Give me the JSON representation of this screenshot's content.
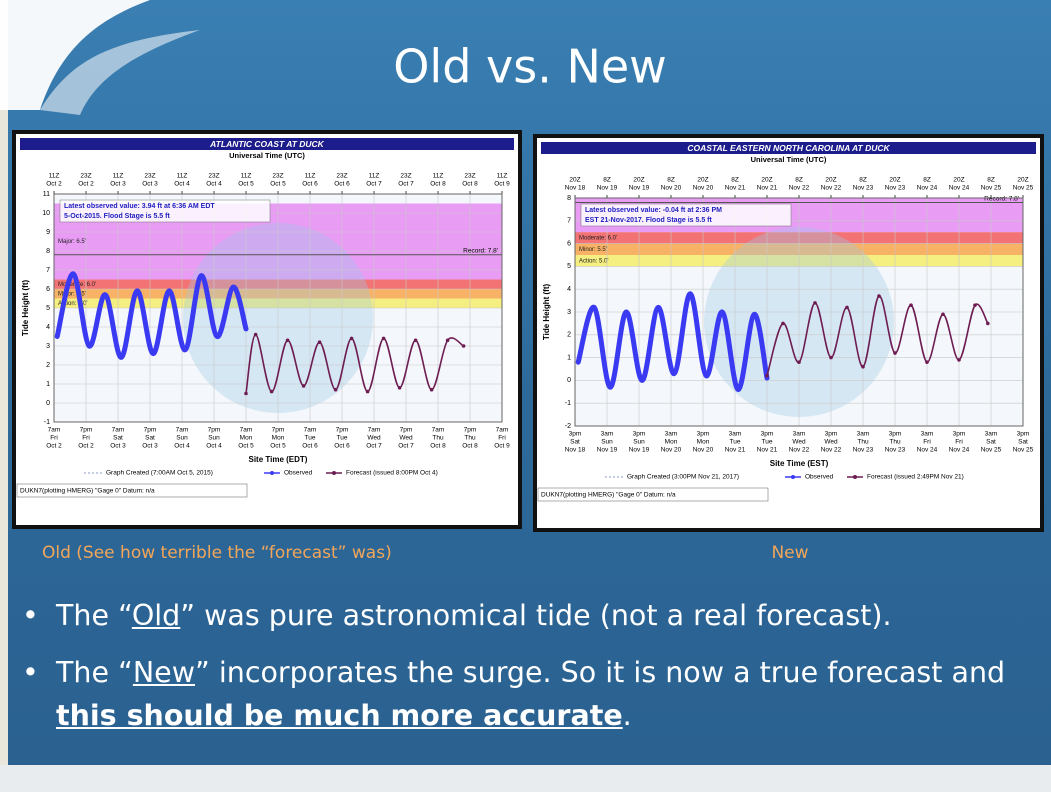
{
  "slide": {
    "title": "Old vs. New"
  },
  "panels": [
    {
      "caption": "Old (See how terrible the “forecast” was)",
      "chart": {
        "type": "line",
        "title": "ATLANTIC COAST AT DUCK",
        "top_axis_label": "Universal Time (UTC)",
        "xlabel": "Site Time (EDT)",
        "ylabel": "Tide Height (ft)",
        "xlim": [
          0,
          7
        ],
        "ylim": [
          -1,
          11
        ],
        "yticks": [
          -1,
          0,
          1,
          2,
          3,
          4,
          5,
          6,
          7,
          8,
          9,
          10,
          11
        ],
        "grid": true,
        "top_ticks": [
          {
            "value": 0,
            "hour": "11Z",
            "date": "Oct 2"
          },
          {
            "value": 0.5,
            "hour": "23Z",
            "date": "Oct 2"
          },
          {
            "value": 1,
            "hour": "11Z",
            "date": "Oct 3"
          },
          {
            "value": 1.5,
            "hour": "23Z",
            "date": "Oct 3"
          },
          {
            "value": 2,
            "hour": "11Z",
            "date": "Oct 4"
          },
          {
            "value": 2.5,
            "hour": "23Z",
            "date": "Oct 4"
          },
          {
            "value": 3,
            "hour": "11Z",
            "date": "Oct 5"
          },
          {
            "value": 3.5,
            "hour": "23Z",
            "date": "Oct 5"
          },
          {
            "value": 4,
            "hour": "11Z",
            "date": "Oct 6"
          },
          {
            "value": 4.5,
            "hour": "23Z",
            "date": "Oct 6"
          },
          {
            "value": 5,
            "hour": "11Z",
            "date": "Oct 7"
          },
          {
            "value": 5.5,
            "hour": "23Z",
            "date": "Oct 7"
          },
          {
            "value": 6,
            "hour": "11Z",
            "date": "Oct 8"
          },
          {
            "value": 6.5,
            "hour": "23Z",
            "date": "Oct 8"
          },
          {
            "value": 7,
            "hour": "11Z",
            "date": "Oct 9"
          }
        ],
        "xticks": [
          {
            "value": 0,
            "time": "7am",
            "day": "Fri",
            "date": "Oct 2"
          },
          {
            "value": 0.5,
            "time": "7pm",
            "day": "Fri",
            "date": "Oct 2"
          },
          {
            "value": 1,
            "time": "7am",
            "day": "Sat",
            "date": "Oct 3"
          },
          {
            "value": 1.5,
            "time": "7pm",
            "day": "Sat",
            "date": "Oct 3"
          },
          {
            "value": 2,
            "time": "7am",
            "day": "Sun",
            "date": "Oct 4"
          },
          {
            "value": 2.5,
            "time": "7pm",
            "day": "Sun",
            "date": "Oct 4"
          },
          {
            "value": 3,
            "time": "7am",
            "day": "Mon",
            "date": "Oct 5"
          },
          {
            "value": 3.5,
            "time": "7pm",
            "day": "Mon",
            "date": "Oct 5"
          },
          {
            "value": 4,
            "time": "7am",
            "day": "Tue",
            "date": "Oct 6"
          },
          {
            "value": 4.5,
            "time": "7pm",
            "day": "Tue",
            "date": "Oct 6"
          },
          {
            "value": 5,
            "time": "7am",
            "day": "Wed",
            "date": "Oct 7"
          },
          {
            "value": 5.5,
            "time": "7pm",
            "day": "Wed",
            "date": "Oct 7"
          },
          {
            "value": 6,
            "time": "7am",
            "day": "Thu",
            "date": "Oct 8"
          },
          {
            "value": 6.5,
            "time": "7pm",
            "day": "Thu",
            "date": "Oct 8"
          },
          {
            "value": 7,
            "time": "7am",
            "day": "Fri",
            "date": "Oct 9"
          }
        ],
        "bands": [
          {
            "from": 6.5,
            "to": 10.5,
            "color": "#e58cf2",
            "label": "Major: 6.5'"
          },
          {
            "from": 6.0,
            "to": 6.5,
            "color": "#f25c5c",
            "label": "Moderate: 6.0'"
          },
          {
            "from": 5.5,
            "to": 6.0,
            "color": "#f7a64a",
            "label": "Minor: 5.5'"
          },
          {
            "from": 5.0,
            "to": 5.5,
            "color": "#f4ec6a",
            "label": "Action: 5.0'"
          }
        ],
        "record": {
          "value": 7.8,
          "label": "Record: 7.8'"
        },
        "info": [
          "Latest observed value: 3.94 ft at 6:36 AM EDT",
          "5-Oct-2015.  Flood Stage is 5.5 ft"
        ],
        "created": "Graph Created (7:00AM Oct 5, 2015)",
        "footer": "DUKN7(plotting HMERG) \"Gage 0\" Datum: n/a",
        "series": [
          {
            "name": "Observed",
            "color": "#3a3af2",
            "x": [
              0.05,
              0.3,
              0.55,
              0.8,
              1.05,
              1.3,
              1.55,
              1.8,
              2.05,
              2.3,
              2.55,
              2.8,
              3.0
            ],
            "values": [
              3.5,
              6.8,
              3.0,
              5.7,
              2.4,
              5.9,
              2.6,
              5.9,
              2.8,
              6.7,
              3.5,
              6.1,
              3.9
            ]
          },
          {
            "name": "Forecast (issued 8:00PM Oct 4)",
            "color": "#6e1d52",
            "x": [
              3.0,
              3.15,
              3.4,
              3.65,
              3.9,
              4.15,
              4.4,
              4.65,
              4.9,
              5.15,
              5.4,
              5.65,
              5.9,
              6.15,
              6.4
            ],
            "values": [
              0.5,
              3.6,
              0.6,
              3.3,
              0.9,
              3.2,
              0.7,
              3.4,
              0.6,
              3.4,
              0.8,
              3.3,
              0.7,
              3.3,
              3.0
            ]
          }
        ]
      }
    },
    {
      "caption": "New",
      "chart": {
        "type": "line",
        "title": "COASTAL EASTERN NORTH CAROLINA AT DUCK",
        "top_axis_label": "Universal Time (UTC)",
        "xlabel": "Site Time (EST)",
        "ylabel": "Tide Height (ft)",
        "xlim": [
          0,
          7
        ],
        "ylim": [
          -2,
          8
        ],
        "yticks": [
          -2,
          -1,
          0,
          1,
          2,
          3,
          4,
          5,
          6,
          7,
          8
        ],
        "grid": true,
        "top_ticks": [
          {
            "value": 0,
            "hour": "20Z",
            "date": "Nov 18"
          },
          {
            "value": 0.5,
            "hour": "8Z",
            "date": "Nov 19"
          },
          {
            "value": 1,
            "hour": "20Z",
            "date": "Nov 19"
          },
          {
            "value": 1.5,
            "hour": "8Z",
            "date": "Nov 20"
          },
          {
            "value": 2,
            "hour": "20Z",
            "date": "Nov 20"
          },
          {
            "value": 2.5,
            "hour": "8Z",
            "date": "Nov 21"
          },
          {
            "value": 3,
            "hour": "20Z",
            "date": "Nov 21"
          },
          {
            "value": 3.5,
            "hour": "8Z",
            "date": "Nov 22"
          },
          {
            "value": 4,
            "hour": "20Z",
            "date": "Nov 22"
          },
          {
            "value": 4.5,
            "hour": "8Z",
            "date": "Nov 23"
          },
          {
            "value": 5,
            "hour": "20Z",
            "date": "Nov 23"
          },
          {
            "value": 5.5,
            "hour": "8Z",
            "date": "Nov 24"
          },
          {
            "value": 6,
            "hour": "20Z",
            "date": "Nov 24"
          },
          {
            "value": 6.5,
            "hour": "8Z",
            "date": "Nov 25"
          },
          {
            "value": 7,
            "hour": "20Z",
            "date": "Nov 25"
          }
        ],
        "xticks": [
          {
            "value": 0,
            "time": "3pm",
            "day": "Sat",
            "date": "Nov 18"
          },
          {
            "value": 0.5,
            "time": "3am",
            "day": "Sun",
            "date": "Nov 19"
          },
          {
            "value": 1,
            "time": "3pm",
            "day": "Sun",
            "date": "Nov 19"
          },
          {
            "value": 1.5,
            "time": "3am",
            "day": "Mon",
            "date": "Nov 20"
          },
          {
            "value": 2,
            "time": "3pm",
            "day": "Mon",
            "date": "Nov 20"
          },
          {
            "value": 2.5,
            "time": "3am",
            "day": "Tue",
            "date": "Nov 21"
          },
          {
            "value": 3,
            "time": "3pm",
            "day": "Tue",
            "date": "Nov 21"
          },
          {
            "value": 3.5,
            "time": "3am",
            "day": "Wed",
            "date": "Nov 22"
          },
          {
            "value": 4,
            "time": "3pm",
            "day": "Wed",
            "date": "Nov 22"
          },
          {
            "value": 4.5,
            "time": "3am",
            "day": "Thu",
            "date": "Nov 23"
          },
          {
            "value": 5,
            "time": "3pm",
            "day": "Thu",
            "date": "Nov 23"
          },
          {
            "value": 5.5,
            "time": "3am",
            "day": "Fri",
            "date": "Nov 24"
          },
          {
            "value": 6,
            "time": "3pm",
            "day": "Fri",
            "date": "Nov 24"
          },
          {
            "value": 6.5,
            "time": "3am",
            "day": "Sat",
            "date": "Nov 25"
          },
          {
            "value": 7,
            "time": "3pm",
            "day": "Sat",
            "date": "Nov 25"
          }
        ],
        "bands": [
          {
            "from": 6.5,
            "to": 8,
            "color": "#e58cf2"
          },
          {
            "from": 6.0,
            "to": 6.5,
            "color": "#f25c5c",
            "label": "Moderate: 6.0'"
          },
          {
            "from": 5.5,
            "to": 6.0,
            "color": "#f7a64a",
            "label": "Minor: 5.5'"
          },
          {
            "from": 5.0,
            "to": 5.5,
            "color": "#f4ec6a",
            "label": "Action: 5.0'"
          }
        ],
        "record": {
          "value": 7.8,
          "label": "Record: 7.8'"
        },
        "info": [
          "Latest observed value: -0.04 ft at 2:36 PM",
          "EST 21-Nov-2017.  Flood Stage is 5.5 ft"
        ],
        "created": "Graph Created (3:00PM Nov 21, 2017)",
        "footer": "DUKN7(plotting HMERG) \"Gage 0\" Datum: n/a",
        "series": [
          {
            "name": "Observed",
            "color": "#3a3af2",
            "x": [
              0.05,
              0.3,
              0.55,
              0.8,
              1.05,
              1.3,
              1.55,
              1.8,
              2.05,
              2.3,
              2.55,
              2.8,
              3.0
            ],
            "values": [
              0.8,
              3.2,
              -0.3,
              3.0,
              0.0,
              3.2,
              0.3,
              3.8,
              0.2,
              3.0,
              -0.4,
              2.9,
              0.1
            ]
          },
          {
            "name": "Forecast (issued 2:49PM Nov 21)",
            "color": "#6e1d52",
            "x": [
              3.0,
              3.25,
              3.5,
              3.75,
              4.0,
              4.25,
              4.5,
              4.75,
              5.0,
              5.25,
              5.5,
              5.75,
              6.0,
              6.25,
              6.45
            ],
            "values": [
              0.2,
              2.5,
              0.8,
              3.4,
              1.0,
              3.2,
              0.6,
              3.7,
              1.2,
              3.3,
              0.8,
              2.9,
              0.9,
              3.3,
              2.5
            ]
          }
        ]
      }
    }
  ],
  "bullets": [
    [
      "The “",
      "Old",
      "” was pure astronomical tide (not a real forecast)."
    ],
    [
      "The “",
      "New",
      "” incorporates the surge.  So it is now a true forecast and ",
      "this should be much more accurate",
      "."
    ]
  ]
}
